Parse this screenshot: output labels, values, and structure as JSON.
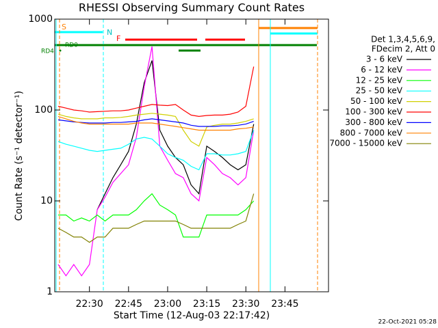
{
  "chart_data": {
    "type": "line",
    "title": "RHESSI Observing Summary Count Rates",
    "xlabel": "Start Time (12-Aug-03 22:17:42)",
    "ylabel": "Count Rate (s⁻¹ detector⁻¹)",
    "legend_title": [
      "Det 1,3,4,5,6,9,",
      "FDecim 2, Att 0"
    ],
    "footer": "22-Oct-2021 05:28",
    "annotations": [
      "S",
      "N",
      "F",
      "RD0",
      "RD4"
    ],
    "log_y": true,
    "legend": "right",
    "xlim": [
      16.7,
      121.7
    ],
    "xticks": [
      {
        "value": 30,
        "label": "22:30"
      },
      {
        "value": 45,
        "label": "22:45"
      },
      {
        "value": 60,
        "label": "23:00"
      },
      {
        "value": 75,
        "label": "23:15"
      },
      {
        "value": 90,
        "label": "23:30"
      },
      {
        "value": 105,
        "label": "23:45"
      }
    ],
    "ylim": [
      1,
      1000
    ],
    "yticks": [
      1,
      10,
      100,
      1000
    ],
    "x": [
      18,
      21,
      24,
      27,
      30,
      33,
      36,
      39,
      42,
      45,
      48,
      51,
      54,
      57,
      60,
      63,
      66,
      69,
      72,
      75,
      78,
      81,
      84,
      87,
      90,
      93
    ],
    "series": [
      {
        "name": "3 - 6 keV",
        "color": "#000000",
        "values": [
          null,
          null,
          null,
          null,
          null,
          8,
          12,
          18,
          25,
          35,
          70,
          200,
          350,
          60,
          40,
          30,
          25,
          15,
          12,
          40,
          35,
          30,
          25,
          22,
          25,
          70
        ]
      },
      {
        "name": "6 - 12 keV",
        "color": "#ff00ff",
        "values": [
          2,
          1.5,
          2,
          1.5,
          2,
          8,
          11,
          16,
          20,
          25,
          50,
          180,
          500,
          40,
          28,
          20,
          18,
          12,
          10,
          30,
          25,
          20,
          18,
          15,
          18,
          60
        ]
      },
      {
        "name": "12 - 25 keV",
        "color": "#00ff00",
        "values": [
          7,
          7,
          6,
          6.5,
          6,
          7,
          6,
          7,
          7,
          7,
          8,
          10,
          12,
          9,
          8,
          7,
          4,
          4,
          4,
          7,
          7,
          7,
          7,
          7,
          8,
          10
        ]
      },
      {
        "name": "25 - 50 keV",
        "color": "#00ffff",
        "values": [
          45,
          42,
          40,
          38,
          36,
          35,
          36,
          37,
          38,
          42,
          48,
          50,
          48,
          40,
          33,
          30,
          28,
          24,
          22,
          33,
          33,
          32,
          32,
          33,
          35,
          60
        ]
      },
      {
        "name": "50 - 100 keV",
        "color": "#d0d000",
        "values": [
          90,
          85,
          82,
          80,
          80,
          80,
          82,
          82,
          83,
          85,
          88,
          90,
          92,
          90,
          88,
          85,
          60,
          45,
          40,
          65,
          68,
          70,
          70,
          72,
          75,
          80
        ]
      },
      {
        "name": "100 - 300 keV",
        "color": "#ff0000",
        "values": [
          110,
          105,
          100,
          98,
          95,
          96,
          97,
          98,
          98,
          100,
          105,
          110,
          115,
          113,
          112,
          115,
          100,
          88,
          85,
          87,
          88,
          88,
          90,
          95,
          110,
          300
        ]
      },
      {
        "name": "300 - 800 keV",
        "color": "#0000ff",
        "values": [
          78,
          76,
          74,
          73,
          72,
          72,
          72,
          73,
          73,
          74,
          75,
          78,
          80,
          78,
          76,
          74,
          72,
          68,
          66,
          66,
          66,
          67,
          67,
          68,
          70,
          75
        ]
      },
      {
        "name": "800 - 7000 keV",
        "color": "#ff8000",
        "values": [
          85,
          80,
          75,
          72,
          70,
          70,
          70,
          70,
          70,
          70,
          72,
          72,
          72,
          70,
          68,
          66,
          64,
          62,
          60,
          60,
          60,
          60,
          60,
          62,
          63,
          65
        ]
      },
      {
        "name": "7000 - 15000 keV",
        "color": "#808000",
        "values": [
          5,
          4.5,
          4,
          4,
          3.5,
          4,
          4,
          5,
          5,
          5,
          5.5,
          6,
          6,
          6,
          6,
          6,
          5.5,
          5,
          5,
          5,
          5,
          5,
          5,
          5.5,
          6,
          12
        ]
      }
    ]
  }
}
